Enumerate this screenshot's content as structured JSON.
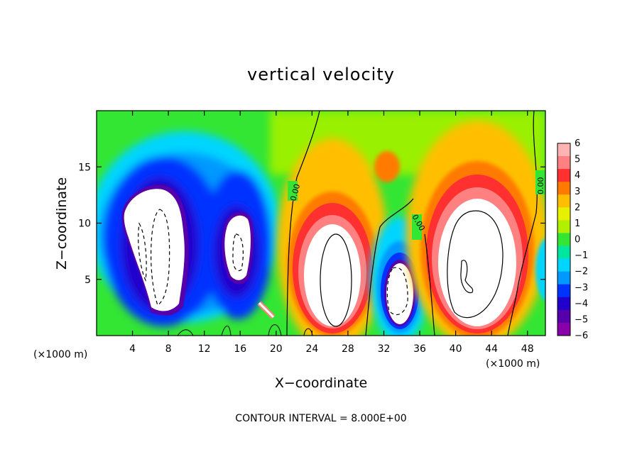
{
  "chart_data": {
    "type": "heatmap",
    "title": "vertical velocity",
    "xlabel": "X−coordinate",
    "ylabel": "Z−coordinate",
    "x_unit_left": "(×1000 m)",
    "x_unit_right": "(×1000 m)",
    "xlim": [
      0,
      50
    ],
    "ylim": [
      0,
      20
    ],
    "xticks": [
      4,
      8,
      12,
      16,
      20,
      24,
      28,
      32,
      36,
      40,
      44,
      48
    ],
    "yticks": [
      5,
      10,
      15
    ],
    "colorbar": {
      "min": -6,
      "max": 6,
      "tick_labels": [
        "6",
        "5",
        "4",
        "3",
        "2",
        "1",
        "0",
        "−1",
        "−2",
        "−3",
        "−4",
        "−5",
        "−6"
      ],
      "colors": [
        "#ffb3b3",
        "#ff8080",
        "#ff3030",
        "#ff7a00",
        "#ffbf00",
        "#e6f000",
        "#b0f000",
        "#33e633",
        "#00e6a0",
        "#00d5ff",
        "#0099ff",
        "#0033ff",
        "#2200cc",
        "#5500aa",
        "#8800aa"
      ]
    },
    "contour_labels": [
      "0.00",
      "0.00",
      "0.00"
    ],
    "cells": [
      {
        "name": "downdraft-1",
        "sign": "negative",
        "center_x": 6.5,
        "center_z": 7.5,
        "span_x": 6.5,
        "span_z": 12
      },
      {
        "name": "downdraft-2",
        "sign": "negative",
        "center_x": 15.5,
        "center_z": 7.5,
        "span_x": 4.5,
        "span_z": 9
      },
      {
        "name": "updraft-1",
        "sign": "positive",
        "center_x": 27,
        "center_z": 6.5,
        "span_x": 6.5,
        "span_z": 12
      },
      {
        "name": "downdraft-3",
        "sign": "negative",
        "center_x": 34,
        "center_z": 4,
        "span_x": 3.5,
        "span_z": 7
      },
      {
        "name": "updraft-2",
        "sign": "positive",
        "center_x": 42,
        "center_z": 7.5,
        "span_x": 8,
        "span_z": 14
      }
    ]
  },
  "footer": "CONTOUR INTERVAL = 8.000E+00"
}
